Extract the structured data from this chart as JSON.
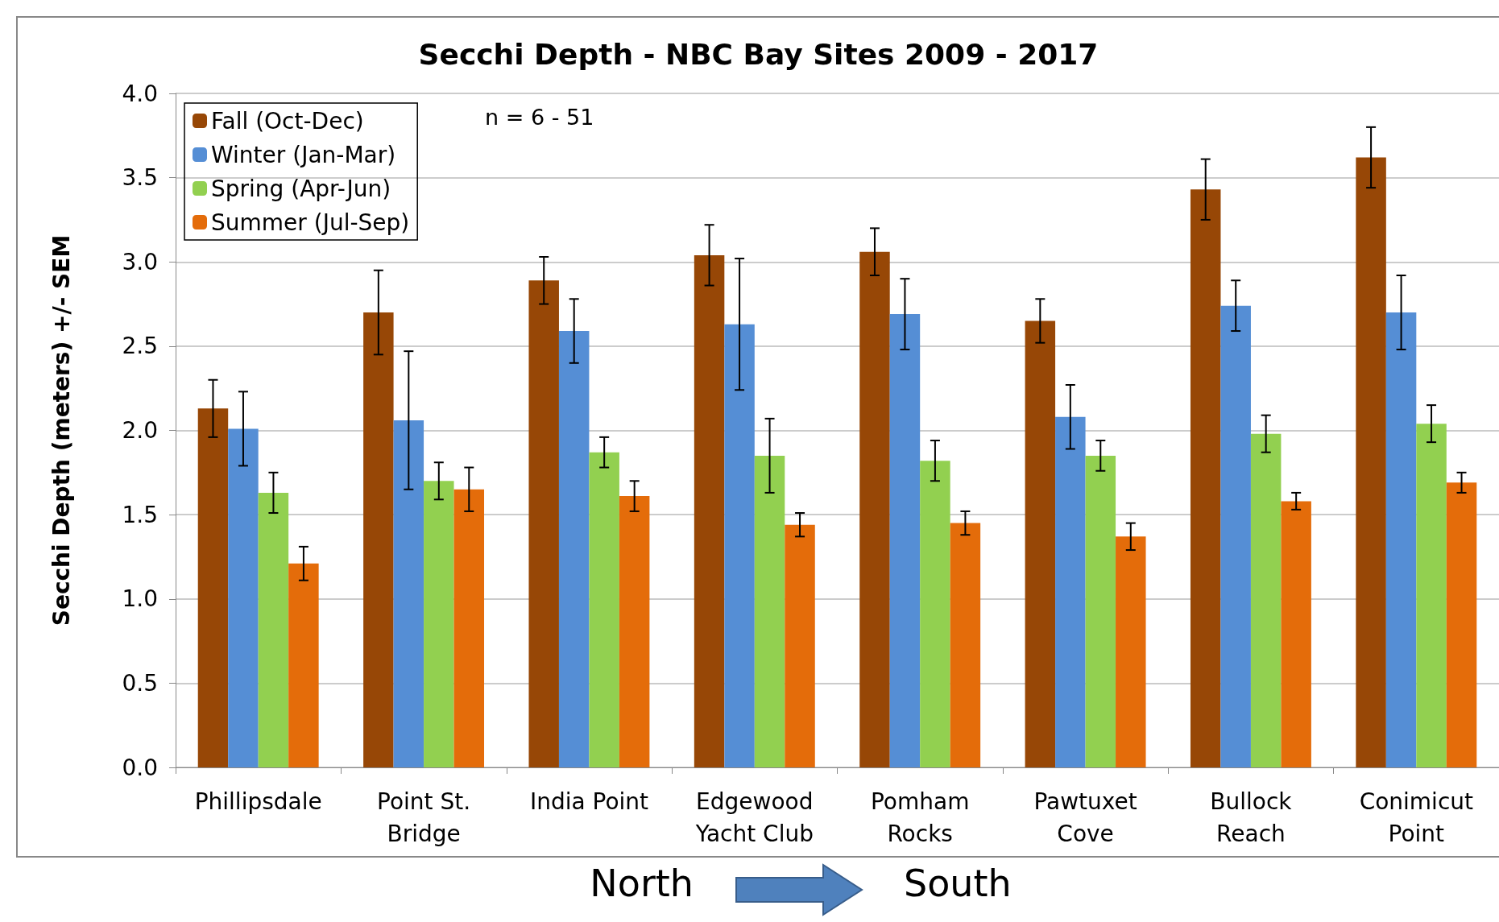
{
  "chart_data": {
    "type": "bar",
    "title": "Secchi Depth - NBC Bay Sites 2009 - 2017",
    "ylabel": "Secchi Depth (meters) +/- SEM",
    "categories": [
      "Phillipsdale",
      "Point St.\nBridge",
      "India Point",
      "Edgewood\nYacht Club",
      "Pomham\nRocks",
      "Pawtuxet\nCove",
      "Bullock\nReach",
      "Conimicut\nPoint"
    ],
    "series": [
      {
        "name": "Fall (Oct-Dec)",
        "color": "#974706",
        "values": [
          2.13,
          2.7,
          2.89,
          3.04,
          3.06,
          2.65,
          3.43,
          3.62
        ],
        "errors": [
          0.17,
          0.25,
          0.14,
          0.18,
          0.14,
          0.13,
          0.18,
          0.18
        ]
      },
      {
        "name": "Winter (Jan-Mar)",
        "color": "#558ed5",
        "values": [
          2.01,
          2.06,
          2.59,
          2.63,
          2.69,
          2.08,
          2.74,
          2.7
        ],
        "errors": [
          0.22,
          0.41,
          0.19,
          0.39,
          0.21,
          0.19,
          0.15,
          0.22
        ]
      },
      {
        "name": "Spring (Apr-Jun)",
        "color": "#92d050",
        "values": [
          1.63,
          1.7,
          1.87,
          1.85,
          1.82,
          1.85,
          1.98,
          2.04
        ],
        "errors": [
          0.12,
          0.11,
          0.09,
          0.22,
          0.12,
          0.09,
          0.11,
          0.11
        ]
      },
      {
        "name": "Summer (Jul-Sep)",
        "color": "#e46c0a",
        "values": [
          1.21,
          1.65,
          1.61,
          1.44,
          1.45,
          1.37,
          1.58,
          1.69
        ],
        "errors": [
          0.1,
          0.13,
          0.09,
          0.07,
          0.07,
          0.08,
          0.05,
          0.06
        ]
      }
    ],
    "ylim": [
      0,
      4
    ],
    "yticks": [
      {
        "value": 0,
        "label": "0.0"
      },
      {
        "value": 0.5,
        "label": "0.5"
      },
      {
        "value": 1,
        "label": "1.0"
      },
      {
        "value": 1.5,
        "label": "1.5"
      },
      {
        "value": 2,
        "label": "2.0"
      },
      {
        "value": 2.5,
        "label": "2.5"
      },
      {
        "value": 3,
        "label": "3.0"
      },
      {
        "value": 3.5,
        "label": "3.5"
      },
      {
        "value": 4,
        "label": "4.0"
      }
    ],
    "grid": "y",
    "legend": "top left",
    "annotations": [
      "n = 6 - 51",
      "North",
      "South"
    ]
  }
}
